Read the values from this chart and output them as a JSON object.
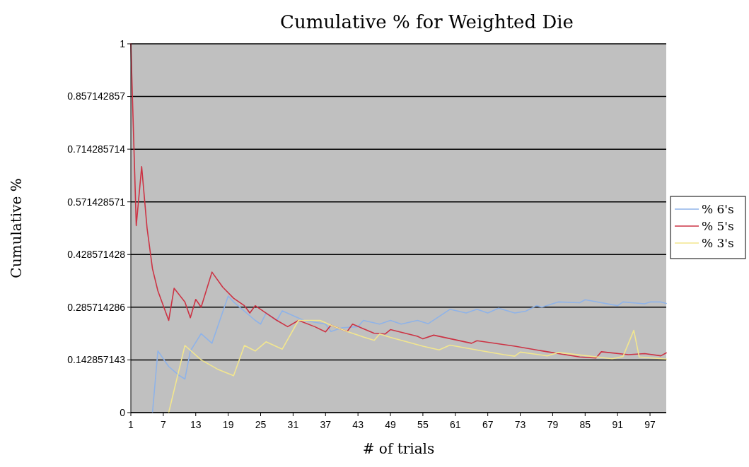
{
  "chart_data": {
    "type": "line",
    "title": "Cumulative % for Weighted Die",
    "xlabel": "# of trials",
    "ylabel": "Cumulative %",
    "xlim": [
      1,
      100
    ],
    "xticks": [
      1,
      7,
      13,
      19,
      25,
      31,
      37,
      43,
      49,
      55,
      61,
      67,
      73,
      79,
      85,
      91,
      97
    ],
    "ylim": [
      0,
      1
    ],
    "yticks": [
      0,
      0.142857143,
      0.285714286,
      0.428571428,
      0.571428571,
      0.714285714,
      0.857142857,
      1
    ],
    "grid": "y",
    "legend": "right",
    "marker": "none",
    "line_style": "solid",
    "series": [
      {
        "name": "% 6's",
        "color": "#8fb3e8",
        "x": [
          5,
          6,
          8,
          10,
          11,
          12,
          14,
          16,
          19,
          20,
          24,
          25,
          26,
          28,
          29,
          33,
          37,
          38,
          40,
          43,
          44,
          47,
          49,
          51,
          54,
          56,
          60,
          63,
          65,
          67,
          69,
          72,
          74,
          76,
          77,
          80,
          84,
          85,
          91,
          92,
          96,
          97,
          99,
          100
        ],
        "values": [
          0,
          0.167,
          0.125,
          0.1,
          0.091,
          0.167,
          0.214,
          0.188,
          0.316,
          0.3,
          0.25,
          0.24,
          0.27,
          0.25,
          0.276,
          0.25,
          0.24,
          0.22,
          0.23,
          0.233,
          0.25,
          0.24,
          0.25,
          0.24,
          0.25,
          0.241,
          0.28,
          0.27,
          0.28,
          0.27,
          0.283,
          0.27,
          0.275,
          0.29,
          0.286,
          0.3,
          0.298,
          0.306,
          0.29,
          0.3,
          0.295,
          0.3,
          0.3,
          0.296
        ]
      },
      {
        "name": "% 5's",
        "color": "#cc3344",
        "x": [
          1,
          2,
          3,
          4,
          5,
          6,
          8,
          9,
          11,
          12,
          13,
          14,
          16,
          18,
          20,
          22,
          23,
          24,
          26,
          28,
          30,
          32,
          35,
          37,
          38,
          41,
          42,
          46,
          48,
          49,
          54,
          55,
          57,
          64,
          65,
          72,
          78,
          84,
          87,
          88,
          93,
          96,
          99,
          100
        ],
        "values": [
          1,
          0.507,
          0.667,
          0.5,
          0.39,
          0.33,
          0.25,
          0.337,
          0.3,
          0.257,
          0.307,
          0.286,
          0.381,
          0.34,
          0.31,
          0.29,
          0.27,
          0.29,
          0.27,
          0.25,
          0.233,
          0.25,
          0.233,
          0.219,
          0.237,
          0.22,
          0.24,
          0.215,
          0.213,
          0.225,
          0.207,
          0.2,
          0.21,
          0.188,
          0.195,
          0.18,
          0.165,
          0.151,
          0.148,
          0.165,
          0.157,
          0.16,
          0.154,
          0.162
        ]
      },
      {
        "name": "% 3's",
        "color": "#f2e68e",
        "x": [
          8,
          11,
          14,
          17,
          20,
          22,
          24,
          26,
          29,
          32,
          36,
          38,
          41,
          44,
          46,
          47,
          49,
          55,
          58,
          60,
          66,
          70,
          72,
          73,
          78,
          80,
          90,
          92,
          94,
          95,
          100
        ],
        "values": [
          0,
          0.182,
          0.143,
          0.118,
          0.1,
          0.182,
          0.167,
          0.192,
          0.172,
          0.25,
          0.25,
          0.237,
          0.22,
          0.205,
          0.196,
          0.213,
          0.204,
          0.18,
          0.17,
          0.183,
          0.167,
          0.157,
          0.153,
          0.164,
          0.154,
          0.163,
          0.146,
          0.152,
          0.223,
          0.151,
          0.145
        ]
      }
    ]
  }
}
